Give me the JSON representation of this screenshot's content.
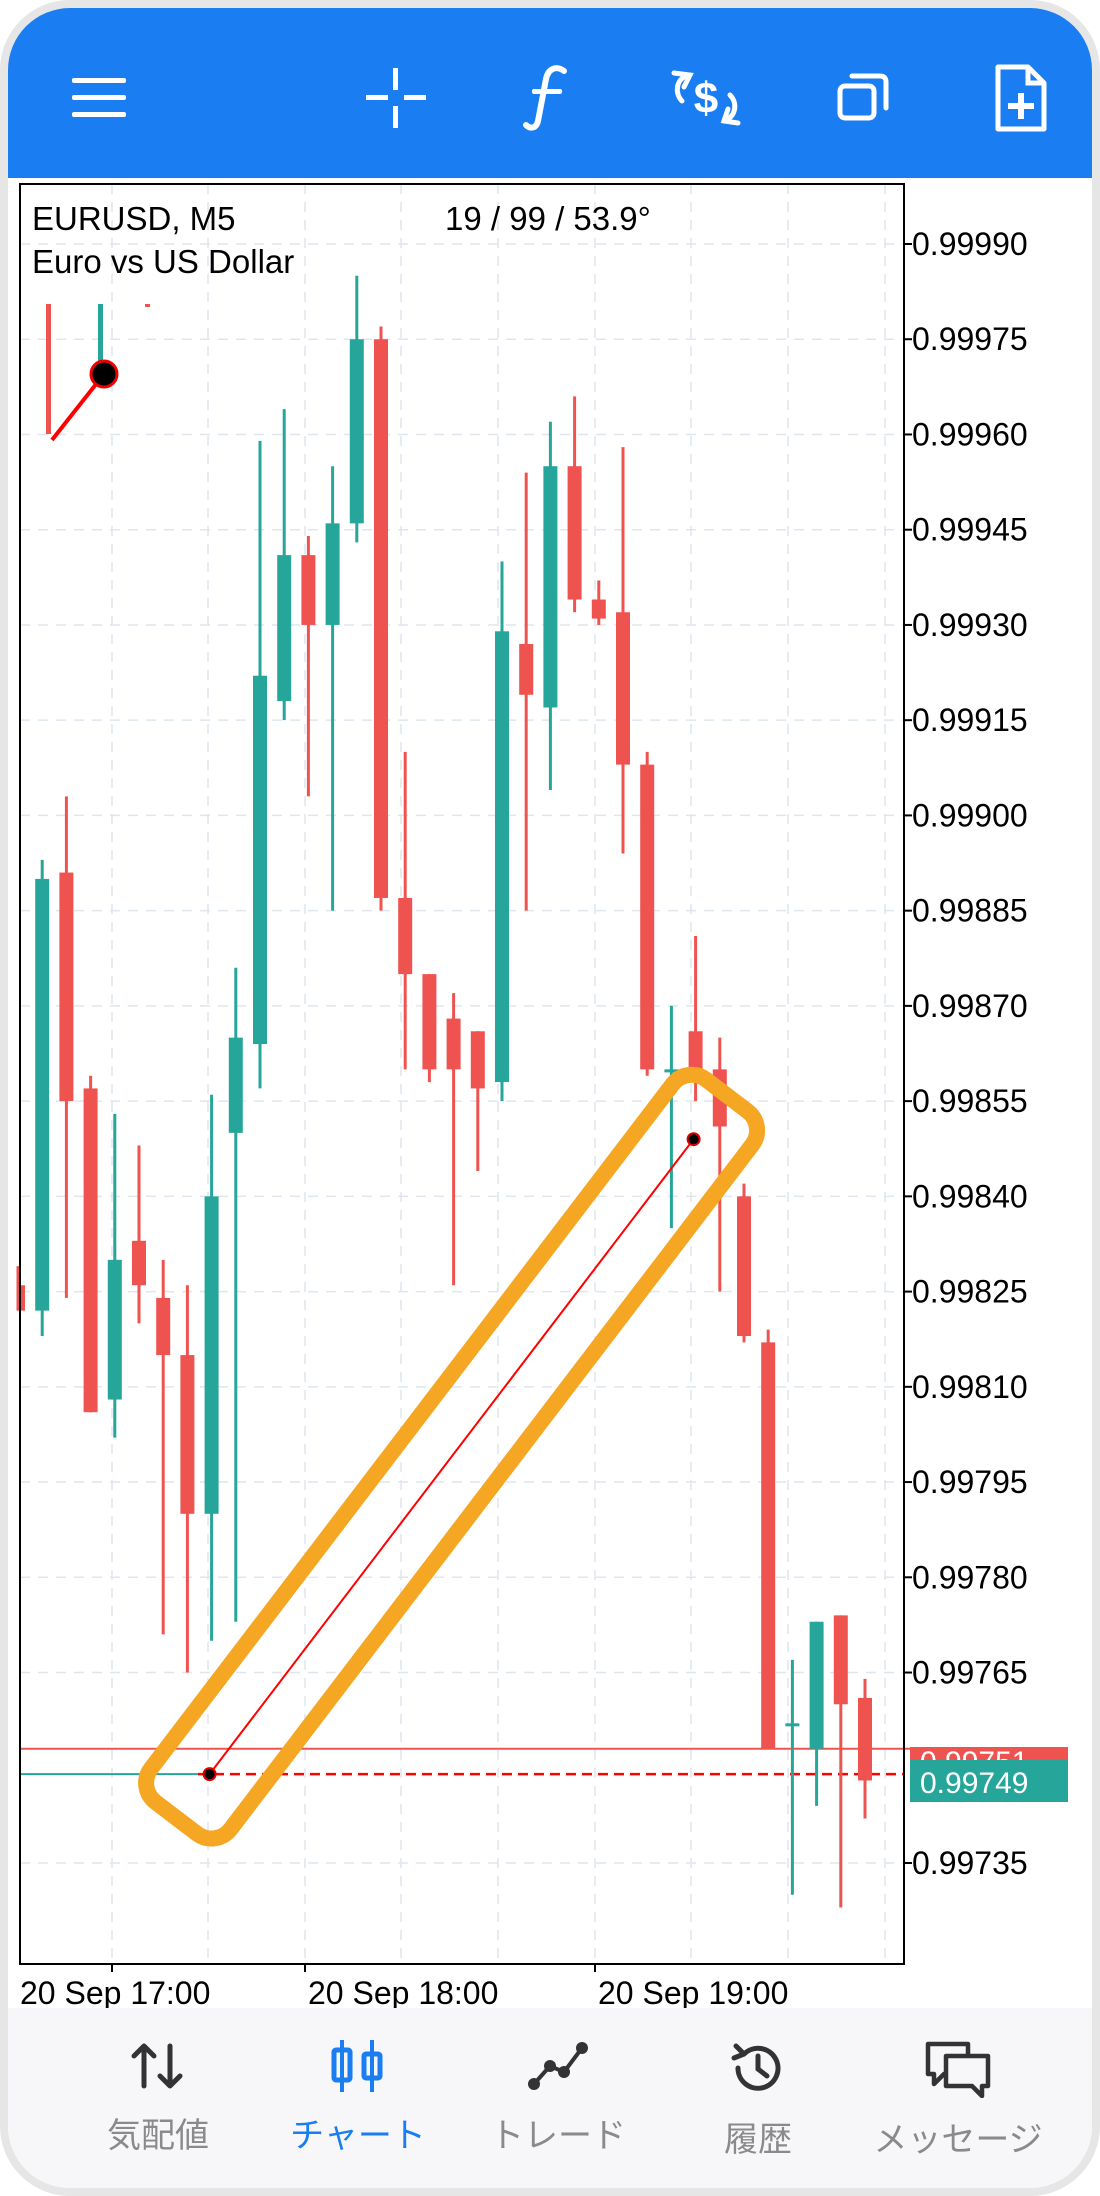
{
  "toolbar": {
    "buttons": [
      {
        "name": "menu-button",
        "icon": "hamburger-menu-icon"
      },
      {
        "name": "crosshair-button",
        "icon": "crosshair-icon"
      },
      {
        "name": "indicators-button",
        "icon": "function-f-icon"
      },
      {
        "name": "trade-button",
        "icon": "dollar-trade-icon"
      },
      {
        "name": "windows-button",
        "icon": "windows-stack-icon"
      },
      {
        "name": "new-order-button",
        "icon": "document-plus-icon"
      }
    ],
    "background_color": "#1a7df2"
  },
  "chart": {
    "symbol_line": "EURUSD, M5",
    "description": "Euro vs US Dollar",
    "crosshair_readout": "19 / 99 / 53.9°",
    "bid_price_label": "0.99751",
    "ask_price_label": "0.99749",
    "colors": {
      "bull": "#26a69a",
      "bear": "#ef5350",
      "highlight": "#f5a623",
      "trendline": "#ff0000"
    }
  },
  "chart_data": {
    "type": "candlestick",
    "y_ticks": [
      "0.99990",
      "0.99975",
      "0.99960",
      "0.99945",
      "0.99930",
      "0.99915",
      "0.99900",
      "0.99885",
      "0.99870",
      "0.99855",
      "0.99840",
      "0.99825",
      "0.99810",
      "0.99795",
      "0.99780",
      "0.99765",
      "0.99735"
    ],
    "x_ticks": [
      "20 Sep 17:00",
      "20 Sep 18:00",
      "20 Sep 19:00"
    ],
    "ylim": [
      0.99724,
      0.99996
    ],
    "candles": [
      {
        "o": 0.99826,
        "h": 0.99829,
        "l": 0.99822,
        "c": 0.99822
      },
      {
        "o": 0.99822,
        "h": 0.99893,
        "l": 0.99818,
        "c": 0.9989
      },
      {
        "o": 0.99891,
        "h": 0.99903,
        "l": 0.99824,
        "c": 0.99855
      },
      {
        "o": 0.99857,
        "h": 0.99859,
        "l": 0.99806,
        "c": 0.99806
      },
      {
        "o": 0.99808,
        "h": 0.99853,
        "l": 0.99802,
        "c": 0.9983
      },
      {
        "o": 0.99833,
        "h": 0.99848,
        "l": 0.9982,
        "c": 0.99826
      },
      {
        "o": 0.99824,
        "h": 0.9983,
        "l": 0.99771,
        "c": 0.99815
      },
      {
        "o": 0.99815,
        "h": 0.99826,
        "l": 0.99765,
        "c": 0.9979
      },
      {
        "o": 0.9979,
        "h": 0.99856,
        "l": 0.9977,
        "c": 0.9984
      },
      {
        "o": 0.9985,
        "h": 0.99876,
        "l": 0.99773,
        "c": 0.99865
      },
      {
        "o": 0.99864,
        "h": 0.99959,
        "l": 0.99857,
        "c": 0.99922
      },
      {
        "o": 0.99918,
        "h": 0.99964,
        "l": 0.99915,
        "c": 0.99941
      },
      {
        "o": 0.99941,
        "h": 0.99944,
        "l": 0.99903,
        "c": 0.9993
      },
      {
        "o": 0.9993,
        "h": 0.99955,
        "l": 0.99885,
        "c": 0.99946
      },
      {
        "o": 0.99946,
        "h": 0.99985,
        "l": 0.99943,
        "c": 0.99975
      },
      {
        "o": 0.99975,
        "h": 0.99977,
        "l": 0.99885,
        "c": 0.99887
      },
      {
        "o": 0.99887,
        "h": 0.9991,
        "l": 0.9986,
        "c": 0.99875
      },
      {
        "o": 0.99875,
        "h": 0.99875,
        "l": 0.99858,
        "c": 0.9986
      },
      {
        "o": 0.99868,
        "h": 0.99872,
        "l": 0.99826,
        "c": 0.9986
      },
      {
        "o": 0.99866,
        "h": 0.99866,
        "l": 0.99844,
        "c": 0.99857
      },
      {
        "o": 0.99858,
        "h": 0.9994,
        "l": 0.99855,
        "c": 0.99929
      },
      {
        "o": 0.99927,
        "h": 0.99954,
        "l": 0.99885,
        "c": 0.99919
      },
      {
        "o": 0.99917,
        "h": 0.99962,
        "l": 0.99904,
        "c": 0.99955
      },
      {
        "o": 0.99955,
        "h": 0.99966,
        "l": 0.99932,
        "c": 0.99934
      },
      {
        "o": 0.99934,
        "h": 0.99937,
        "l": 0.9993,
        "c": 0.99931
      },
      {
        "o": 0.99932,
        "h": 0.99958,
        "l": 0.99894,
        "c": 0.99908
      },
      {
        "o": 0.99908,
        "h": 0.9991,
        "l": 0.99859,
        "c": 0.9986
      },
      {
        "o": 0.9986,
        "h": 0.9987,
        "l": 0.99835,
        "c": 0.9986
      },
      {
        "o": 0.99866,
        "h": 0.99881,
        "l": 0.99855,
        "c": 0.9986
      },
      {
        "o": 0.9986,
        "h": 0.99865,
        "l": 0.99825,
        "c": 0.99851
      },
      {
        "o": 0.9984,
        "h": 0.99842,
        "l": 0.99817,
        "c": 0.99818
      },
      {
        "o": 0.99817,
        "h": 0.99819,
        "l": 0.99753,
        "c": 0.99753
      },
      {
        "o": 0.99757,
        "h": 0.99767,
        "l": 0.9973,
        "c": 0.99757
      },
      {
        "o": 0.99753,
        "h": 0.99773,
        "l": 0.99744,
        "c": 0.99773
      },
      {
        "o": 0.99774,
        "h": 0.99774,
        "l": 0.99728,
        "c": 0.9976
      },
      {
        "o": 0.99761,
        "h": 0.99764,
        "l": 0.99742,
        "c": 0.99748
      }
    ],
    "trendline": {
      "from": {
        "candle": 8,
        "price": 0.99749
      },
      "to": {
        "candle": 28,
        "price": 0.99849
      }
    },
    "grid": true,
    "legend": "none"
  },
  "nav": {
    "items": [
      {
        "label": "気配値",
        "icon": "quotes-arrows-icon",
        "active": false
      },
      {
        "label": "チャート",
        "icon": "chart-candles-icon",
        "active": true
      },
      {
        "label": "トレード",
        "icon": "trade-line-icon",
        "active": false
      },
      {
        "label": "履歴",
        "icon": "history-clock-icon",
        "active": false
      },
      {
        "label": "メッセージ",
        "icon": "messages-icon",
        "active": false
      }
    ]
  }
}
